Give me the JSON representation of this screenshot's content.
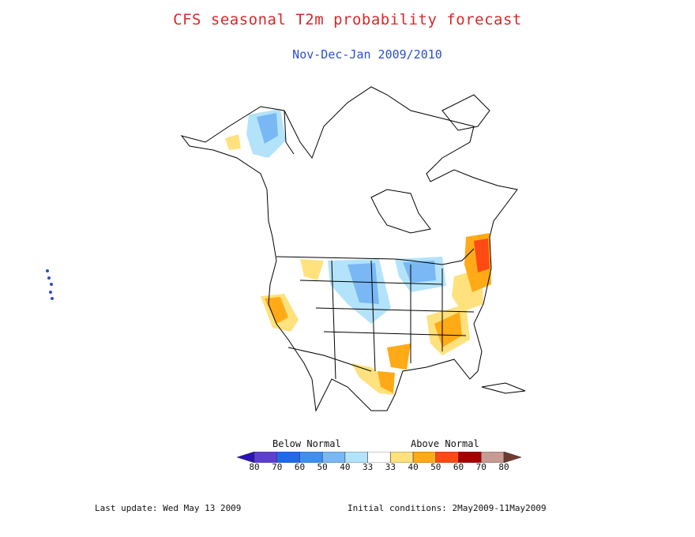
{
  "title": "CFS seasonal T2m probability forecast",
  "subtitle": "Nov-Dec-Jan 2009/2010",
  "legend": {
    "below_label": "Below Normal",
    "above_label": "Above Normal",
    "bins": [
      {
        "color": "#2a12b4"
      },
      {
        "color": "#5c3fd1"
      },
      {
        "color": "#2069e8"
      },
      {
        "color": "#3e8ff0"
      },
      {
        "color": "#79b8f5"
      },
      {
        "color": "#b3e3fa"
      },
      {
        "color": "#ffffff"
      },
      {
        "color": "#ffe17d"
      },
      {
        "color": "#ffaa16"
      },
      {
        "color": "#ff4a14"
      },
      {
        "color": "#a80000"
      },
      {
        "color": "#c79a94"
      },
      {
        "color": "#6e3a32"
      }
    ],
    "tick_labels": [
      "80",
      "70",
      "60",
      "50",
      "40",
      "33",
      "33",
      "40",
      "50",
      "60",
      "70",
      "80"
    ]
  },
  "footer": {
    "last_update": "Last update: Wed May 13 2009",
    "initial_conditions": "Initial conditions: 2May2009-11May2009"
  },
  "colors": {
    "title": "#d8282a",
    "subtitle": "#2b4fc9"
  }
}
